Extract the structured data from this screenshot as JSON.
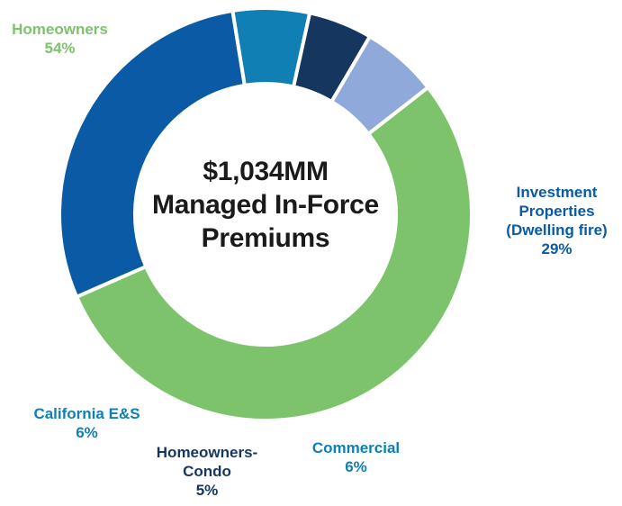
{
  "chart_data": {
    "type": "pie",
    "title_lines": [
      "$1,034MM",
      "Managed In-Force",
      "Premiums"
    ],
    "slices": [
      {
        "label_lines": [
          "Homeowners"
        ],
        "value": 54,
        "value_label": "54%",
        "color": "#7dc36c"
      },
      {
        "label_lines": [
          "Investment",
          "Properties",
          "(Dwelling fire)"
        ],
        "value": 29,
        "value_label": "29%",
        "color": "#0a5aa5"
      },
      {
        "label_lines": [
          "Commercial"
        ],
        "value": 6,
        "value_label": "6%",
        "color": "#0f7fb4"
      },
      {
        "label_lines": [
          "Homeowners-",
          "Condo"
        ],
        "value": 5,
        "value_label": "5%",
        "color": "#14365f"
      },
      {
        "label_lines": [
          "California E&S"
        ],
        "value": 6,
        "value_label": "6%",
        "color": "#8fa9db"
      }
    ],
    "label_colors": {
      "Homeowners": "#7dc36c",
      "Investment": "#0a5aa5",
      "Commercial": "#0f7fb4",
      "Homeowners-Condo": "#14365f",
      "California E&S": "#0f7fb4"
    }
  }
}
